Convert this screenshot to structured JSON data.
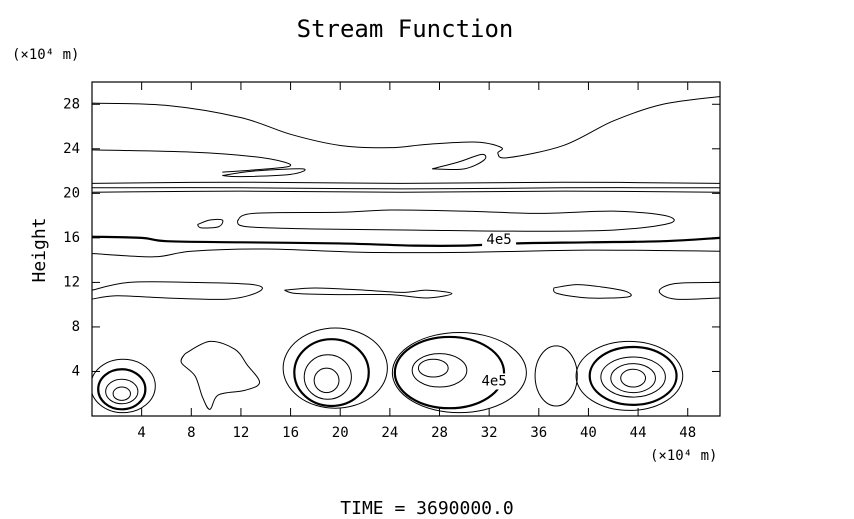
{
  "chart_data": {
    "type": "contour",
    "title": "Stream Function",
    "ylabel": "Height",
    "x_unit": "(×10⁴ m)",
    "y_unit": "(×10⁴ m)",
    "footer": "TIME = 3690000.0",
    "xlim": [
      0,
      50.6
    ],
    "ylim": [
      0,
      30
    ],
    "xticks": [
      4,
      8,
      12,
      16,
      20,
      24,
      28,
      32,
      36,
      40,
      44,
      48
    ],
    "yticks": [
      4,
      8,
      12,
      16,
      20,
      24,
      28
    ],
    "color": "#000000",
    "lines": [
      {
        "x": [
          0,
          6,
          12,
          16,
          20,
          24,
          27,
          31,
          33,
          32.7,
          33.5,
          38,
          42,
          46,
          50.6
        ],
        "y": [
          28.1,
          27.9,
          26.8,
          25.3,
          24.3,
          24.1,
          24.4,
          24.6,
          24.1,
          23.6,
          23.2,
          24.3,
          26.5,
          28,
          28.7
        ]
      },
      {
        "x": [
          0,
          8,
          13,
          15.5,
          15.8,
          13,
          10.5
        ],
        "y": [
          23.9,
          23.7,
          23.3,
          22.8,
          22.4,
          22.1,
          21.9
        ]
      },
      {
        "x": [
          10.5,
          13,
          17,
          16,
          12,
          10.5
        ],
        "y": [
          21.6,
          22.0,
          22.2,
          21.7,
          21.5,
          21.6
        ]
      },
      {
        "x": [
          27.4,
          29.5,
          31.4,
          31.6,
          30,
          27.4
        ],
        "y": [
          22.2,
          22.8,
          23.5,
          23.0,
          22.2,
          22.2
        ]
      },
      {
        "x": [
          0,
          12,
          25,
          38,
          50.6
        ],
        "y": [
          20.9,
          21.0,
          20.9,
          21.0,
          20.9
        ]
      },
      {
        "x": [
          0,
          12,
          25,
          38,
          50.6
        ],
        "y": [
          20.5,
          20.5,
          20.4,
          20.5,
          20.5
        ]
      },
      {
        "x": [
          0,
          12,
          25,
          38,
          50.6
        ],
        "y": [
          20.1,
          20.2,
          20.1,
          20.2,
          20.1
        ]
      },
      {
        "x": [
          11.7,
          13,
          20,
          24,
          30,
          36,
          42,
          46.2,
          46.5,
          42,
          34,
          26,
          18,
          12.5,
          11.7
        ],
        "y": [
          17.5,
          18.2,
          18.3,
          18.5,
          18.4,
          18.2,
          18.4,
          18.0,
          17.3,
          16.7,
          16.6,
          16.7,
          16.8,
          17.0,
          17.5
        ]
      },
      {
        "x": [
          8.5,
          9.5,
          10.5,
          10.2,
          8.8,
          8.5
        ],
        "y": [
          17.2,
          17.6,
          17.6,
          17.0,
          16.9,
          17.2
        ]
      },
      {
        "x": [
          0,
          4,
          6,
          12,
          20,
          26,
          30,
          34,
          40,
          46,
          50.6
        ],
        "y": [
          16.1,
          16.0,
          15.7,
          15.6,
          15.5,
          15.3,
          15.3,
          15.5,
          15.6,
          15.7,
          16.0
        ],
        "bold": true
      },
      {
        "x": [
          0,
          5,
          8,
          14,
          22,
          30,
          40,
          50.6
        ],
        "y": [
          14.6,
          14.3,
          14.8,
          15.0,
          14.7,
          14.7,
          14.9,
          14.8
        ]
      },
      {
        "x": [
          0,
          3,
          8,
          13,
          13.5,
          11,
          6,
          2,
          0
        ],
        "y": [
          11.3,
          12.0,
          12.0,
          11.8,
          11.2,
          10.5,
          10.6,
          10.8,
          10.5
        ]
      },
      {
        "x": [
          15.5,
          18,
          22,
          25,
          27,
          29,
          27,
          24,
          20,
          16.5,
          15.5
        ],
        "y": [
          11.3,
          11.5,
          11.3,
          11.1,
          11.3,
          11.0,
          10.6,
          10.9,
          10.9,
          11.0,
          11.3
        ]
      },
      {
        "x": [
          37.2,
          39,
          41,
          43,
          43.2,
          40,
          37.5,
          37.2
        ],
        "y": [
          11.5,
          11.8,
          11.6,
          11.2,
          10.7,
          10.6,
          11.0,
          11.5
        ]
      },
      {
        "x": [
          50.6,
          47,
          45.7,
          47,
          50.6
        ],
        "y": [
          12.0,
          11.9,
          11.2,
          10.5,
          10.6
        ]
      },
      {
        "x": [
          7.5,
          9.5,
          11.5,
          12.5,
          13.5,
          12.3,
          10.2,
          9.5,
          8.9,
          8.3,
          7.2,
          7.5
        ],
        "y": [
          5.6,
          6.7,
          6.0,
          4.6,
          3.0,
          2.3,
          1.9,
          0.6,
          1.7,
          3.6,
          4.8,
          5.6
        ]
      }
    ],
    "rings": [
      {
        "cx": 2.4,
        "cy": 2.0,
        "rx": 0.7,
        "ry": 0.6
      },
      {
        "cx": 2.4,
        "cy": 2.2,
        "rx": 1.3,
        "ry": 1.1
      },
      {
        "cx": 2.4,
        "cy": 2.4,
        "rx": 1.9,
        "ry": 1.8,
        "bold": true
      },
      {
        "cx": 2.5,
        "cy": 2.7,
        "rx": 2.6,
        "ry": 2.4
      },
      {
        "cx": 18.9,
        "cy": 3.2,
        "rx": 1.0,
        "ry": 1.1
      },
      {
        "cx": 19.0,
        "cy": 3.5,
        "rx": 1.9,
        "ry": 2.0
      },
      {
        "cx": 19.3,
        "cy": 3.9,
        "rx": 3.0,
        "ry": 3.0,
        "bold": true
      },
      {
        "cx": 19.6,
        "cy": 4.3,
        "rx": 4.2,
        "ry": 3.6
      },
      {
        "cx": 27.5,
        "cy": 4.3,
        "rx": 1.2,
        "ry": 0.8
      },
      {
        "cx": 28.0,
        "cy": 4.1,
        "rx": 2.2,
        "ry": 1.5
      },
      {
        "cx": 28.8,
        "cy": 3.9,
        "rx": 4.4,
        "ry": 3.2,
        "bold": true
      },
      {
        "cx": 29.6,
        "cy": 3.9,
        "rx": 5.4,
        "ry": 3.6
      },
      {
        "cx": 43.6,
        "cy": 3.4,
        "rx": 1.0,
        "ry": 0.8
      },
      {
        "cx": 43.6,
        "cy": 3.4,
        "rx": 1.8,
        "ry": 1.3
      },
      {
        "cx": 43.6,
        "cy": 3.5,
        "rx": 2.6,
        "ry": 1.8
      },
      {
        "cx": 43.6,
        "cy": 3.6,
        "rx": 3.5,
        "ry": 2.6,
        "bold": true
      },
      {
        "cx": 43.3,
        "cy": 3.6,
        "rx": 4.3,
        "ry": 3.1
      },
      {
        "cx": 37.4,
        "cy": 3.6,
        "rx": 1.7,
        "ry": 2.7
      }
    ],
    "contour_labels": [
      {
        "text": "4e5",
        "x": 32.8,
        "y": 15.8
      },
      {
        "text": "4e5",
        "x": 32.4,
        "y": 3.1
      }
    ]
  }
}
